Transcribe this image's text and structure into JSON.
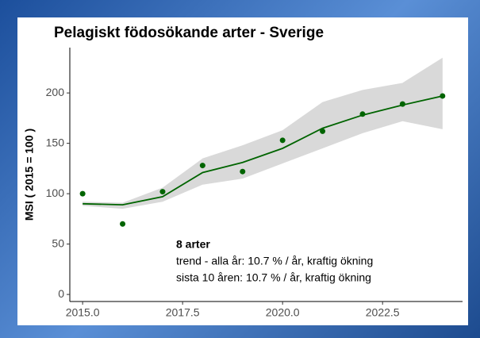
{
  "chart_data": {
    "type": "line",
    "title": "Pelagiskt födosökande arter - Sverige",
    "ylabel": "MSI ( 2015 = 100 )",
    "x": [
      2015,
      2016,
      2017,
      2018,
      2019,
      2020,
      2021,
      2022,
      2023,
      2024
    ],
    "points": [
      100,
      70,
      102,
      128,
      122,
      153,
      162,
      179,
      189,
      197
    ],
    "trend": [
      90,
      89,
      97,
      121,
      131,
      145,
      165,
      178,
      188,
      197
    ],
    "ci_lower": [
      88,
      85,
      92,
      109,
      115,
      130,
      145,
      160,
      172,
      164
    ],
    "ci_upper": [
      92,
      91,
      106,
      135,
      148,
      163,
      191,
      203,
      210,
      235
    ],
    "point_color": "#006400",
    "line_color": "#006400",
    "band_color": "#d9d9d9",
    "xlim": [
      2014.68,
      2024.5
    ],
    "ylim": [
      -7,
      245
    ],
    "xticks": [
      {
        "value": 2015,
        "label": "2015.0"
      },
      2017.5,
      {
        "value": 2020,
        "label": "2020.0"
      },
      2022.5
    ],
    "yticks": [
      0,
      50,
      100,
      150,
      200
    ],
    "annotations": [
      "8 arter",
      "trend - alla år: 10.7 % / år, kraftig ökning",
      "sista 10 åren: 10.7 % / år, kraftig ökning"
    ]
  }
}
